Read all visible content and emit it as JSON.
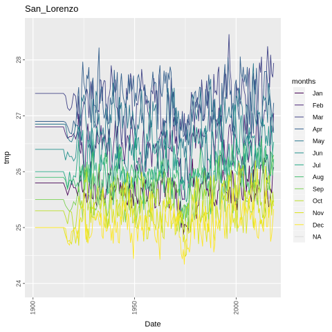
{
  "chart_data": {
    "type": "line",
    "title": "San_Lorenzo",
    "xlabel": "Date",
    "ylabel": "tmp",
    "xlim": [
      1896,
      2022
    ],
    "ylim": [
      23.75,
      28.75
    ],
    "xticks": [
      "1900",
      "1950",
      "2000"
    ],
    "xtick_values": [
      1900,
      1950,
      2000
    ],
    "yticks": [
      "24",
      "25",
      "26",
      "27",
      "28"
    ],
    "ytick_values": [
      24,
      25,
      26,
      27,
      28
    ],
    "grid": true,
    "legend_title": "months",
    "legend_position": "right",
    "x_start": 1901,
    "x_end": 2018,
    "series": [
      {
        "name": "Jan",
        "color": "#440154",
        "base": 25.65,
        "flat": 25.8,
        "amp": 0.3,
        "range": [
          24.7,
          26.3
        ]
      },
      {
        "name": "Feb",
        "color": "#482576",
        "base": 26.4,
        "flat": 26.8,
        "amp": 0.35,
        "range": [
          25.5,
          27.4
        ]
      },
      {
        "name": "Mar",
        "color": "#414487",
        "base": 27.2,
        "flat": 27.4,
        "amp": 0.45,
        "range": [
          26.4,
          28.6
        ]
      },
      {
        "name": "Apr",
        "color": "#35608D",
        "base": 27.3,
        "flat": 26.9,
        "amp": 0.45,
        "range": [
          26.2,
          28.5
        ]
      },
      {
        "name": "May",
        "color": "#2A788E",
        "base": 26.9,
        "flat": 26.85,
        "amp": 0.4,
        "range": [
          26.0,
          28.0
        ]
      },
      {
        "name": "Jun",
        "color": "#21908C",
        "base": 26.4,
        "flat": 26.4,
        "amp": 0.35,
        "range": [
          25.5,
          27.2
        ]
      },
      {
        "name": "Jul",
        "color": "#22A884",
        "base": 26.0,
        "flat": 26.0,
        "amp": 0.3,
        "range": [
          25.2,
          26.8
        ]
      },
      {
        "name": "Aug",
        "color": "#43BF71",
        "base": 25.9,
        "flat": 25.9,
        "amp": 0.3,
        "range": [
          25.0,
          26.6
        ]
      },
      {
        "name": "Sep",
        "color": "#7AD151",
        "base": 25.6,
        "flat": 25.5,
        "amp": 0.3,
        "range": [
          24.6,
          26.3
        ]
      },
      {
        "name": "Oct",
        "color": "#BBDF27",
        "base": 25.45,
        "flat": 25.3,
        "amp": 0.3,
        "range": [
          24.4,
          26.2
        ]
      },
      {
        "name": "Nov",
        "color": "#DCE319",
        "base": 25.25,
        "flat": 25.0,
        "amp": 0.35,
        "range": [
          24.2,
          26.6
        ]
      },
      {
        "name": "Dec",
        "color": "#FDE725",
        "base": 25.05,
        "flat": 25.0,
        "amp": 0.3,
        "range": [
          23.9,
          26.2
        ]
      }
    ],
    "na_label": "NA",
    "na_color": "#d9d9d9"
  }
}
